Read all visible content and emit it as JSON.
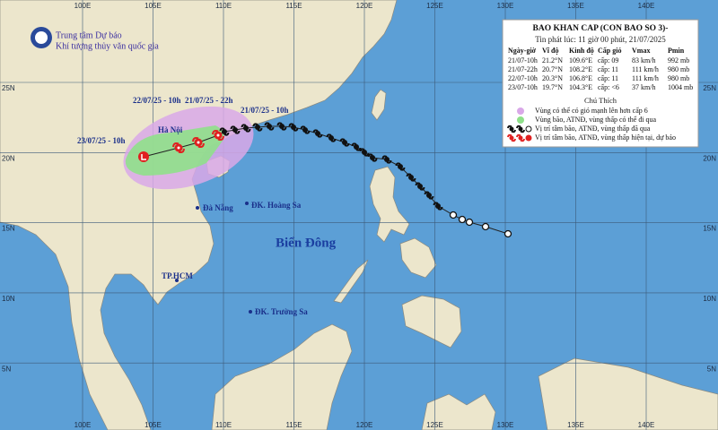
{
  "header": {
    "org_line1": "Trung tâm Dự báo",
    "org_line2": "Khí tượng thủy văn quốc gia"
  },
  "bulletin": {
    "title": "BAO KHAN CAP (CON BAO SO 3)-",
    "subtitle": "Tin phát lúc: 11 giờ 00 phút, 21/07/2025",
    "columns": [
      "Ngày-giờ",
      "Vĩ độ",
      "Kinh độ",
      "Cấp gió",
      "Vmax",
      "Pmin"
    ],
    "rows": [
      [
        "21/07-10h",
        "21.2°N",
        "109.6°E",
        "cấp: 09",
        "83 km/h",
        "992 mb"
      ],
      [
        "21/07-22h",
        "20.7°N",
        "108.2°E",
        "cấp: 11",
        "111 km/h",
        "980 mb"
      ],
      [
        "22/07-10h",
        "20.3°N",
        "106.8°E",
        "cấp: 11",
        "111 km/h",
        "980 mb"
      ],
      [
        "23/07-10h",
        "19.7°N",
        "104.3°E",
        "cấp: <6",
        "37 km/h",
        "1004 mb"
      ]
    ]
  },
  "legend": {
    "title": "Chú Thích",
    "items": [
      "Vùng có thể có gió mạnh lên hơn cấp 6",
      "Vùng bão, ATNĐ, vùng thấp có thể đi qua",
      "Vị trí tâm bão, ATNĐ, vùng thấp đã qua",
      "Vị trí tâm bão, ATNĐ, vùng thấp hiện tại, dự báo"
    ]
  },
  "map": {
    "lon_labels": [
      "100E",
      "105E",
      "110E",
      "115E",
      "120E",
      "125E",
      "130E",
      "135E",
      "140E"
    ],
    "lat_labels": [
      "25N",
      "20N",
      "15N",
      "10N",
      "5N"
    ],
    "places": [
      "Hà Nội",
      "Đà Nẵng",
      "ĐK. Hoàng Sa",
      "TP.HCM",
      "ĐK. Trường Sa"
    ],
    "sea_label": "Biển Đông",
    "track_labels": [
      "22/07/25 - 10h",
      "21/07/25 - 22h",
      "21/07/25 - 10h",
      "23/07/25 - 10h"
    ]
  }
}
